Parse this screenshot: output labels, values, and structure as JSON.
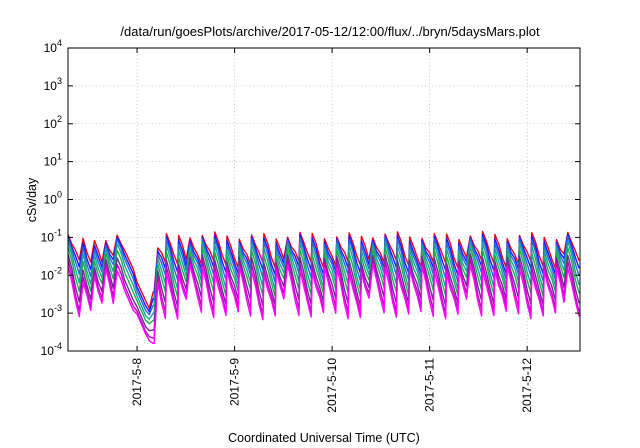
{
  "chart_data": {
    "type": "line",
    "title": "/data/run/goesPlots/archive/2017-05-12/12:00/flux/../bryn/5daysMars.plot",
    "xlabel": "Coordinated Universal Time (UTC)",
    "ylabel": "cSv/day",
    "yscale": "log",
    "ylim": [
      0.0001,
      10000
    ],
    "xlim": [
      "2017-05-07 07:00",
      "2017-05-12 13:00"
    ],
    "x_ticks": [
      "2017-5-8",
      "2017-5-9",
      "2017-5-10",
      "2017-5-11",
      "2017-5-12"
    ],
    "y_ticks": [
      {
        "base": "10",
        "exp": "-4",
        "value": 0.0001
      },
      {
        "base": "10",
        "exp": "-3",
        "value": 0.001
      },
      {
        "base": "10",
        "exp": "-2",
        "value": 0.01
      },
      {
        "base": "10",
        "exp": "-1",
        "value": 0.1
      },
      {
        "base": "10",
        "exp": "0",
        "value": 1
      },
      {
        "base": "10",
        "exp": "1",
        "value": 10
      },
      {
        "base": "10",
        "exp": "2",
        "value": 100
      },
      {
        "base": "10",
        "exp": "3",
        "value": 1000
      },
      {
        "base": "10",
        "exp": "4",
        "value": 10000
      }
    ],
    "grid": true,
    "pattern": {
      "description": "Sawtooth traces repeating roughly every 3 hours (sharp rise at each cycle start, decay until the next); deep dip toward 1e-4 late on 2017-05-08 before recovering on 2017-05-09",
      "period_hours": 3,
      "gap_hours": [
        20.8,
        21.2
      ]
    },
    "series": [
      {
        "color": "#e8001c",
        "peak": 0.12,
        "trough": 0.018
      },
      {
        "color": "#1a1aff",
        "peak": 0.1,
        "trough": 0.012
      },
      {
        "color": "#2a66dd",
        "peak": 0.085,
        "trough": 0.008
      },
      {
        "color": "#1aa0a0",
        "peak": 0.065,
        "trough": 0.005
      },
      {
        "color": "#19b04a",
        "peak": 0.045,
        "trough": 0.0032
      },
      {
        "color": "#6a2a90",
        "peak": 0.03,
        "trough": 0.0018
      },
      {
        "color": "#c000c0",
        "peak": 0.022,
        "trough": 0.0011
      },
      {
        "color": "#ff00ff",
        "peak": 0.016,
        "trough": 0.0008
      }
    ]
  }
}
